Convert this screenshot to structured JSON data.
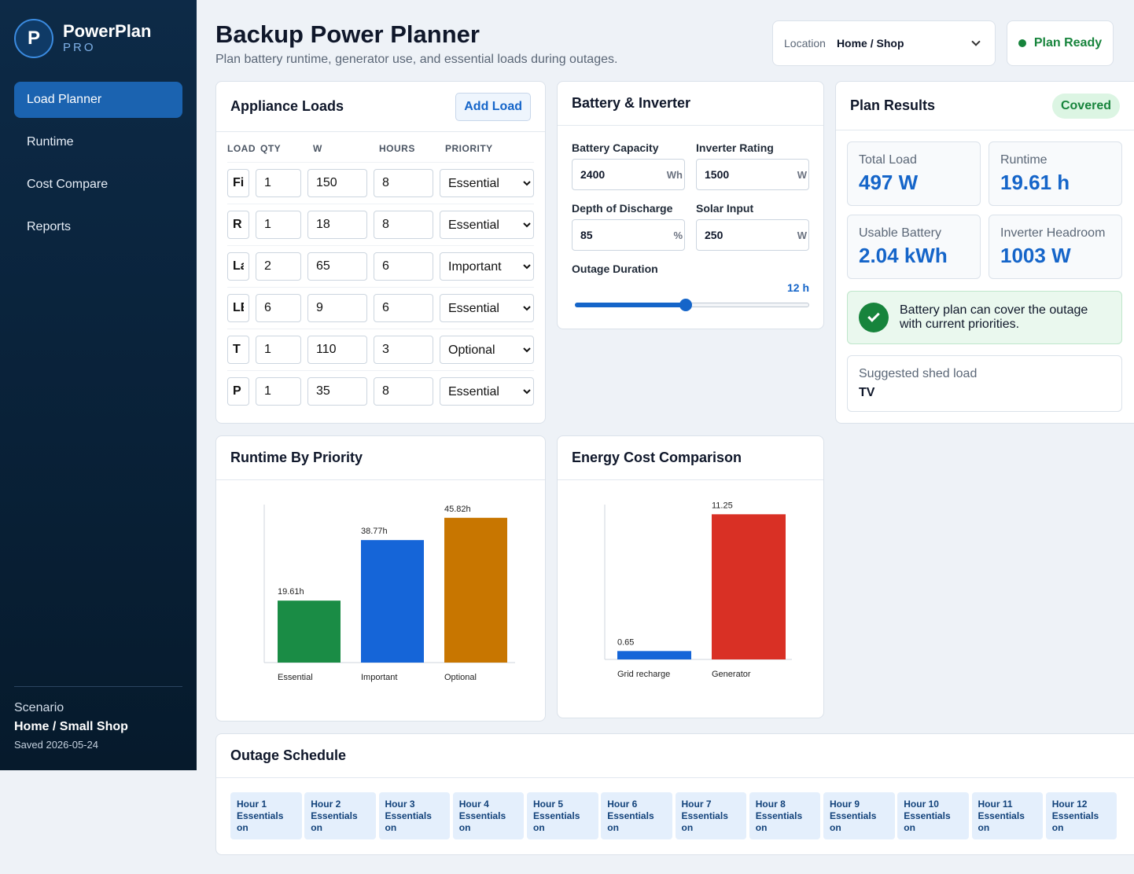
{
  "app": {
    "name": "PowerPlan",
    "tier": "PRO",
    "logo_letter": "P"
  },
  "nav": {
    "items": [
      {
        "label": "Load Planner",
        "active": true
      },
      {
        "label": "Runtime",
        "active": false
      },
      {
        "label": "Cost Compare",
        "active": false
      },
      {
        "label": "Reports",
        "active": false
      }
    ]
  },
  "scenario": {
    "label": "Scenario",
    "name": "Home / Small Shop",
    "saved": "Saved 2026-05-24"
  },
  "header": {
    "title": "Backup Power Planner",
    "subtitle": "Plan battery runtime, generator use, and essential loads during outages.",
    "location_label": "Location",
    "location_value": "Home / Shop",
    "status": "Plan Ready"
  },
  "loads": {
    "title": "Appliance Loads",
    "add_label": "Add Load",
    "columns": [
      "LOAD",
      "QTY",
      "W",
      "HOURS",
      "PRIORITY"
    ],
    "priority_options": [
      "Essential",
      "Important",
      "Optional"
    ],
    "rows": [
      {
        "name": "Fi",
        "qty": "1",
        "w": "150",
        "hours": "8",
        "priority": "Essential"
      },
      {
        "name": "R",
        "qty": "1",
        "w": "18",
        "hours": "8",
        "priority": "Essential"
      },
      {
        "name": "La",
        "qty": "2",
        "w": "65",
        "hours": "6",
        "priority": "Important"
      },
      {
        "name": "LE",
        "qty": "6",
        "w": "9",
        "hours": "6",
        "priority": "Essential"
      },
      {
        "name": "T",
        "qty": "1",
        "w": "110",
        "hours": "3",
        "priority": "Optional"
      },
      {
        "name": "P",
        "qty": "1",
        "w": "35",
        "hours": "8",
        "priority": "Essential"
      }
    ]
  },
  "battery": {
    "title": "Battery & Inverter",
    "capacity_label": "Battery Capacity",
    "capacity": "2400",
    "capacity_unit": "Wh",
    "inverter_label": "Inverter Rating",
    "inverter": "1500",
    "inverter_unit": "W",
    "dod_label": "Depth of Discharge",
    "dod": "85",
    "dod_unit": "%",
    "solar_label": "Solar Input",
    "solar": "250",
    "solar_unit": "W",
    "outage_label": "Outage Duration",
    "outage_value": "12 h",
    "outage_fraction": 0.48
  },
  "results": {
    "title": "Plan Results",
    "badge": "Covered",
    "stats": [
      {
        "label": "Total Load",
        "value": "497 W"
      },
      {
        "label": "Runtime",
        "value": "19.61 h"
      },
      {
        "label": "Usable Battery",
        "value": "2.04 kWh"
      },
      {
        "label": "Inverter Headroom",
        "value": "1003 W"
      }
    ],
    "message": "Battery plan can cover the outage with current priorities.",
    "shed_label": "Suggested shed load",
    "shed_value": "TV"
  },
  "chart_data": [
    {
      "type": "bar",
      "title": "Runtime By Priority",
      "categories": [
        "Essential",
        "Important",
        "Optional"
      ],
      "values": [
        19.61,
        38.77,
        45.82
      ],
      "labels": [
        "19.61h",
        "38.77h",
        "45.82h"
      ],
      "colors": [
        "#1a8c45",
        "#1565d8",
        "#c87600"
      ],
      "ylim": [
        0,
        50
      ]
    },
    {
      "type": "bar",
      "title": "Energy Cost Comparison",
      "categories": [
        "Grid recharge",
        "Generator"
      ],
      "values": [
        0.65,
        11.25
      ],
      "labels": [
        "0.65",
        "11.25"
      ],
      "colors": [
        "#1565d8",
        "#d93025"
      ],
      "ylim": [
        0,
        12
      ]
    }
  ],
  "schedule": {
    "title": "Outage Schedule",
    "items": [
      {
        "hour": "Hour 1",
        "status": "Essentials on"
      },
      {
        "hour": "Hour 2",
        "status": "Essentials on"
      },
      {
        "hour": "Hour 3",
        "status": "Essentials on"
      },
      {
        "hour": "Hour 4",
        "status": "Essentials on"
      },
      {
        "hour": "Hour 5",
        "status": "Essentials on"
      },
      {
        "hour": "Hour 6",
        "status": "Essentials on"
      },
      {
        "hour": "Hour 7",
        "status": "Essentials on"
      },
      {
        "hour": "Hour 8",
        "status": "Essentials on"
      },
      {
        "hour": "Hour 9",
        "status": "Essentials on"
      },
      {
        "hour": "Hour 10",
        "status": "Essentials on"
      },
      {
        "hour": "Hour 11",
        "status": "Essentials on"
      },
      {
        "hour": "Hour 12",
        "status": "Essentials on"
      }
    ]
  }
}
